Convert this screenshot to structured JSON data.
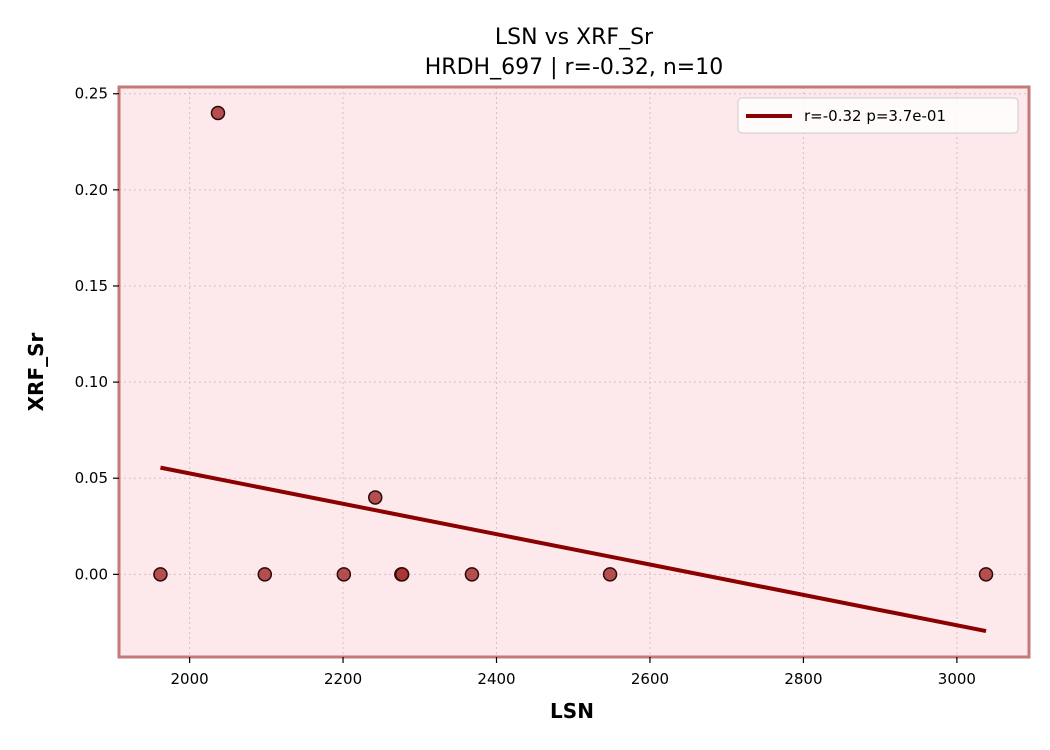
{
  "chart_data": {
    "type": "scatter",
    "title": "LSN vs XRF_Sr",
    "subtitle": "HRDH_697 | r=-0.32, n=10",
    "xlabel": "LSN",
    "ylabel": "XRF_Sr",
    "xlim": [
      1908,
      3094
    ],
    "ylim": [
      -0.043,
      0.2535
    ],
    "x_ticks": [
      2000,
      2200,
      2400,
      2600,
      2800,
      3000
    ],
    "y_ticks": [
      0.0,
      0.05,
      0.1,
      0.15,
      0.2,
      0.25
    ],
    "x_tick_labels": [
      "2000",
      "2200",
      "2400",
      "2600",
      "2800",
      "3000"
    ],
    "y_tick_labels": [
      "0.00",
      "0.05",
      "0.10",
      "0.15",
      "0.20",
      "0.25"
    ],
    "grid": true,
    "legend_position": "top-right",
    "series": [
      {
        "kind": "scatter",
        "points": [
          {
            "x": 1962,
            "y": 0.0
          },
          {
            "x": 2037,
            "y": 0.24
          },
          {
            "x": 2098,
            "y": 0.0
          },
          {
            "x": 2201,
            "y": 0.0
          },
          {
            "x": 2242,
            "y": 0.04
          },
          {
            "x": 2276,
            "y": 0.0
          },
          {
            "x": 2277,
            "y": 0.0
          },
          {
            "x": 2368,
            "y": 0.0
          },
          {
            "x": 2548,
            "y": 0.0
          },
          {
            "x": 3038,
            "y": 0.0
          }
        ]
      },
      {
        "kind": "line",
        "name": "r=-0.32  p=3.7e-01",
        "points": [
          {
            "x": 1962,
            "y": 0.0555
          },
          {
            "x": 3038,
            "y": -0.0295
          }
        ]
      }
    ],
    "colors": {
      "plot_background": "#fde8ec",
      "frame": "#c47a7a",
      "marker_fill": "#a83232",
      "marker_edge": "#2b0a0a",
      "fit_line": "#8b0000",
      "grid": "#d9bfc3"
    }
  }
}
